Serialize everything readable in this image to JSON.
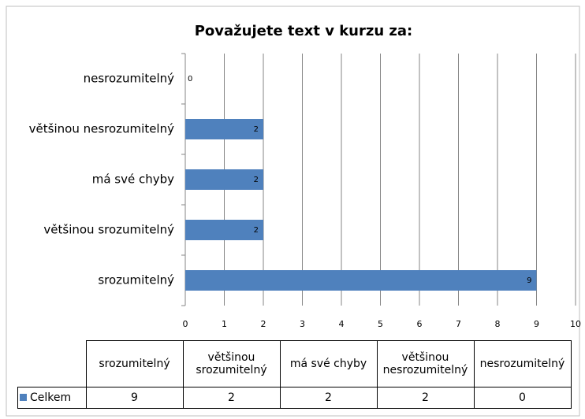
{
  "chart_data": {
    "type": "barh",
    "title": "Považujete text v kurzu za:",
    "categories": [
      "srozumitelný",
      "většinou srozumitelný",
      "má své chyby",
      "většinou nesrozumitelný",
      "nesrozumitelný"
    ],
    "series": [
      {
        "name": "Celkem",
        "color": "#4f81bd",
        "values": [
          9,
          2,
          2,
          2,
          0
        ]
      }
    ],
    "xlim": [
      0,
      10
    ],
    "xticks": [
      0,
      1,
      2,
      3,
      4,
      5,
      6,
      7,
      8,
      9,
      10
    ],
    "grid": true,
    "data_table": true
  }
}
